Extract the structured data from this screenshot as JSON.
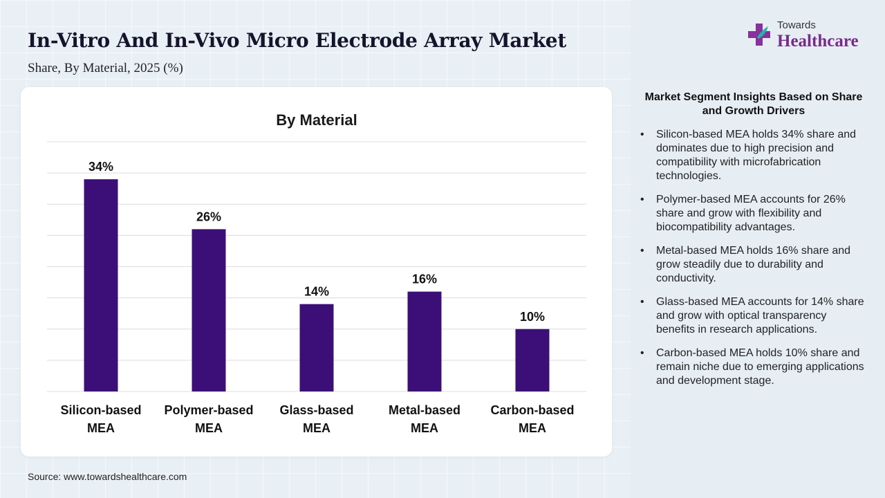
{
  "header": {
    "title": "In-Vitro And In-Vivo Micro Electrode Array Market",
    "subtitle": "Share, By Material, 2025 (%)"
  },
  "logo": {
    "small_text": "Towards",
    "big_text": "Healthcare",
    "icon": "medical-cross-icon"
  },
  "chart_data": {
    "type": "bar",
    "title": "By Material",
    "categories": [
      [
        "Silicon-based",
        "MEA"
      ],
      [
        "Polymer-based",
        "MEA"
      ],
      [
        "Glass-based",
        "MEA"
      ],
      [
        "Metal-based",
        "MEA"
      ],
      [
        "Carbon-based",
        "MEA"
      ]
    ],
    "values": [
      34,
      26,
      14,
      16,
      10
    ],
    "value_labels": [
      "34%",
      "26%",
      "14%",
      "16%",
      "10%"
    ],
    "ylim": [
      0,
      40
    ],
    "gridlines": 8,
    "grid": true,
    "bar_color": "#3c0f78"
  },
  "insights": {
    "heading": "Market Segment Insights Based on Share and Growth Drivers",
    "items": [
      "Silicon-based MEA holds 34% share and dominates due to high precision and compatibility with microfabrication technologies.",
      "Polymer-based MEA accounts for 26% share and grow with flexibility and biocompatibility advantages.",
      "Metal-based MEA holds 16% share and grow steadily due to durability and conductivity.",
      "Glass-based MEA accounts for 14% share and grow with optical transparency benefits in research applications.",
      "Carbon-based MEA holds 10% share and remain niche due to emerging applications and development stage."
    ]
  },
  "footer": {
    "source": "Source: www.towardshealthcare.com"
  }
}
